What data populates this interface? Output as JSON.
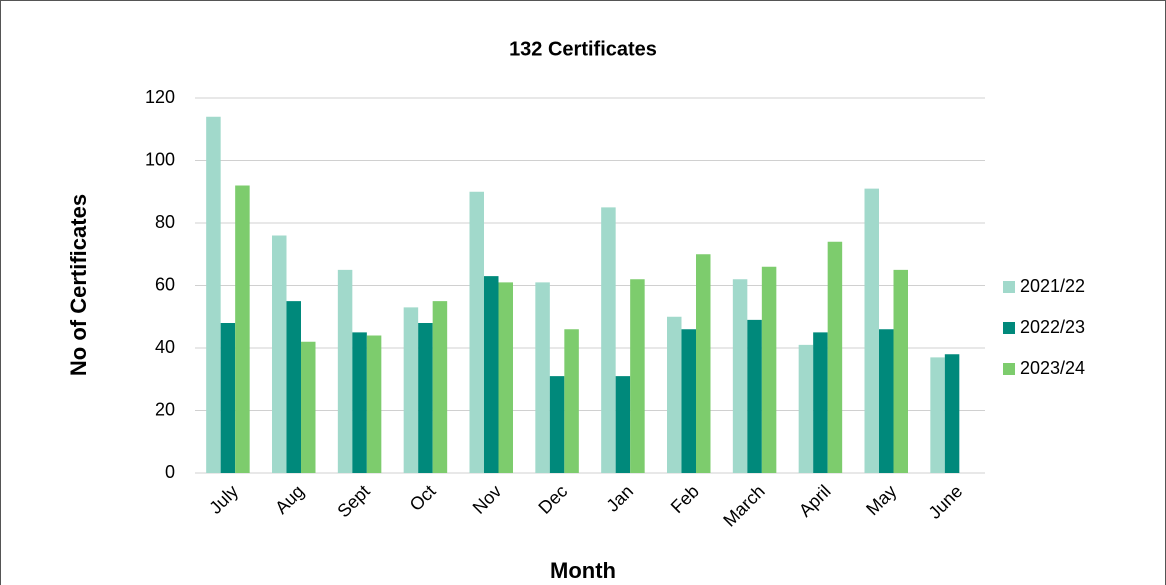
{
  "chart_data": {
    "type": "bar",
    "title": "132 Certificates",
    "x_label": "Month",
    "y_label": "No of Certificates",
    "categories": [
      "July",
      "Aug",
      "Sept",
      "Oct",
      "Nov",
      "Dec",
      "Jan",
      "Feb",
      "March",
      "April",
      "May",
      "June"
    ],
    "series": [
      {
        "name": "2021/22",
        "color": "#a1d9cb",
        "values": [
          114,
          76,
          65,
          53,
          90,
          61,
          85,
          50,
          62,
          41,
          91,
          37
        ]
      },
      {
        "name": "2022/23",
        "color": "#00897b",
        "values": [
          48,
          55,
          45,
          48,
          63,
          31,
          31,
          46,
          49,
          45,
          46,
          38
        ]
      },
      {
        "name": "2023/24",
        "color": "#7dcc6d",
        "values": [
          92,
          42,
          44,
          55,
          61,
          46,
          62,
          70,
          66,
          74,
          65,
          null
        ]
      }
    ],
    "ylim": [
      0,
      120
    ],
    "yticks": [
      0,
      20,
      40,
      60,
      80,
      100,
      120
    ],
    "grid": true,
    "legend": "right"
  }
}
